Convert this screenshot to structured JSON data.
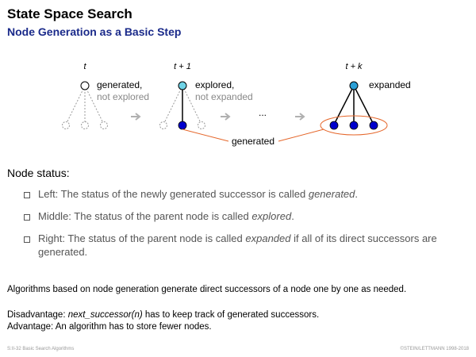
{
  "header": {
    "title": "State Space Search",
    "subtitle": "Node Generation as a Basic Step"
  },
  "diagram": {
    "time_labels": [
      "t",
      "t + 1",
      "t + k"
    ],
    "label_generated": "generated,",
    "label_not_explored": "not explored",
    "label_explored": "explored,",
    "label_not_expanded": "not expanded",
    "label_expanded": "expanded",
    "label_ellipsis": "...",
    "label_generated_bottom": "generated",
    "colors": {
      "node_filled": "#0000cc",
      "node_cyan": "#6fd3e6",
      "node_blue": "#2a9fd6",
      "annotation": "#e5662a",
      "dashed": "#9a9a9a",
      "arrow": "#b0b0b0"
    }
  },
  "node_status": {
    "heading": "Node status:",
    "left": {
      "prefix": "Left: The status of the newly generated successor is called ",
      "emphasis": "generated",
      "suffix": "."
    },
    "middle": {
      "prefix": "Middle: The status of the parent node is called ",
      "emphasis": "explored",
      "suffix": "."
    },
    "right": {
      "prefix": "Right: The status of the parent node is called ",
      "emphasis": "expanded",
      "suffix": " if all of its direct successors are generated."
    }
  },
  "paragraphs": {
    "algorithms": "Algorithms based on node generation generate direct successors of a node one by one as needed.",
    "disadvantage_label": "Disadvantage: ",
    "disadvantage_func": "next_successor",
    "disadvantage_arg": "(n)",
    "disadvantage_rest": " has to keep track of generated successors.",
    "advantage": "Advantage: An algorithm has to store fewer nodes."
  },
  "footer": {
    "left": "S:II-32   Basic Search Algorithms",
    "right": "©STEIN/LETTMANN 1998-2018"
  }
}
